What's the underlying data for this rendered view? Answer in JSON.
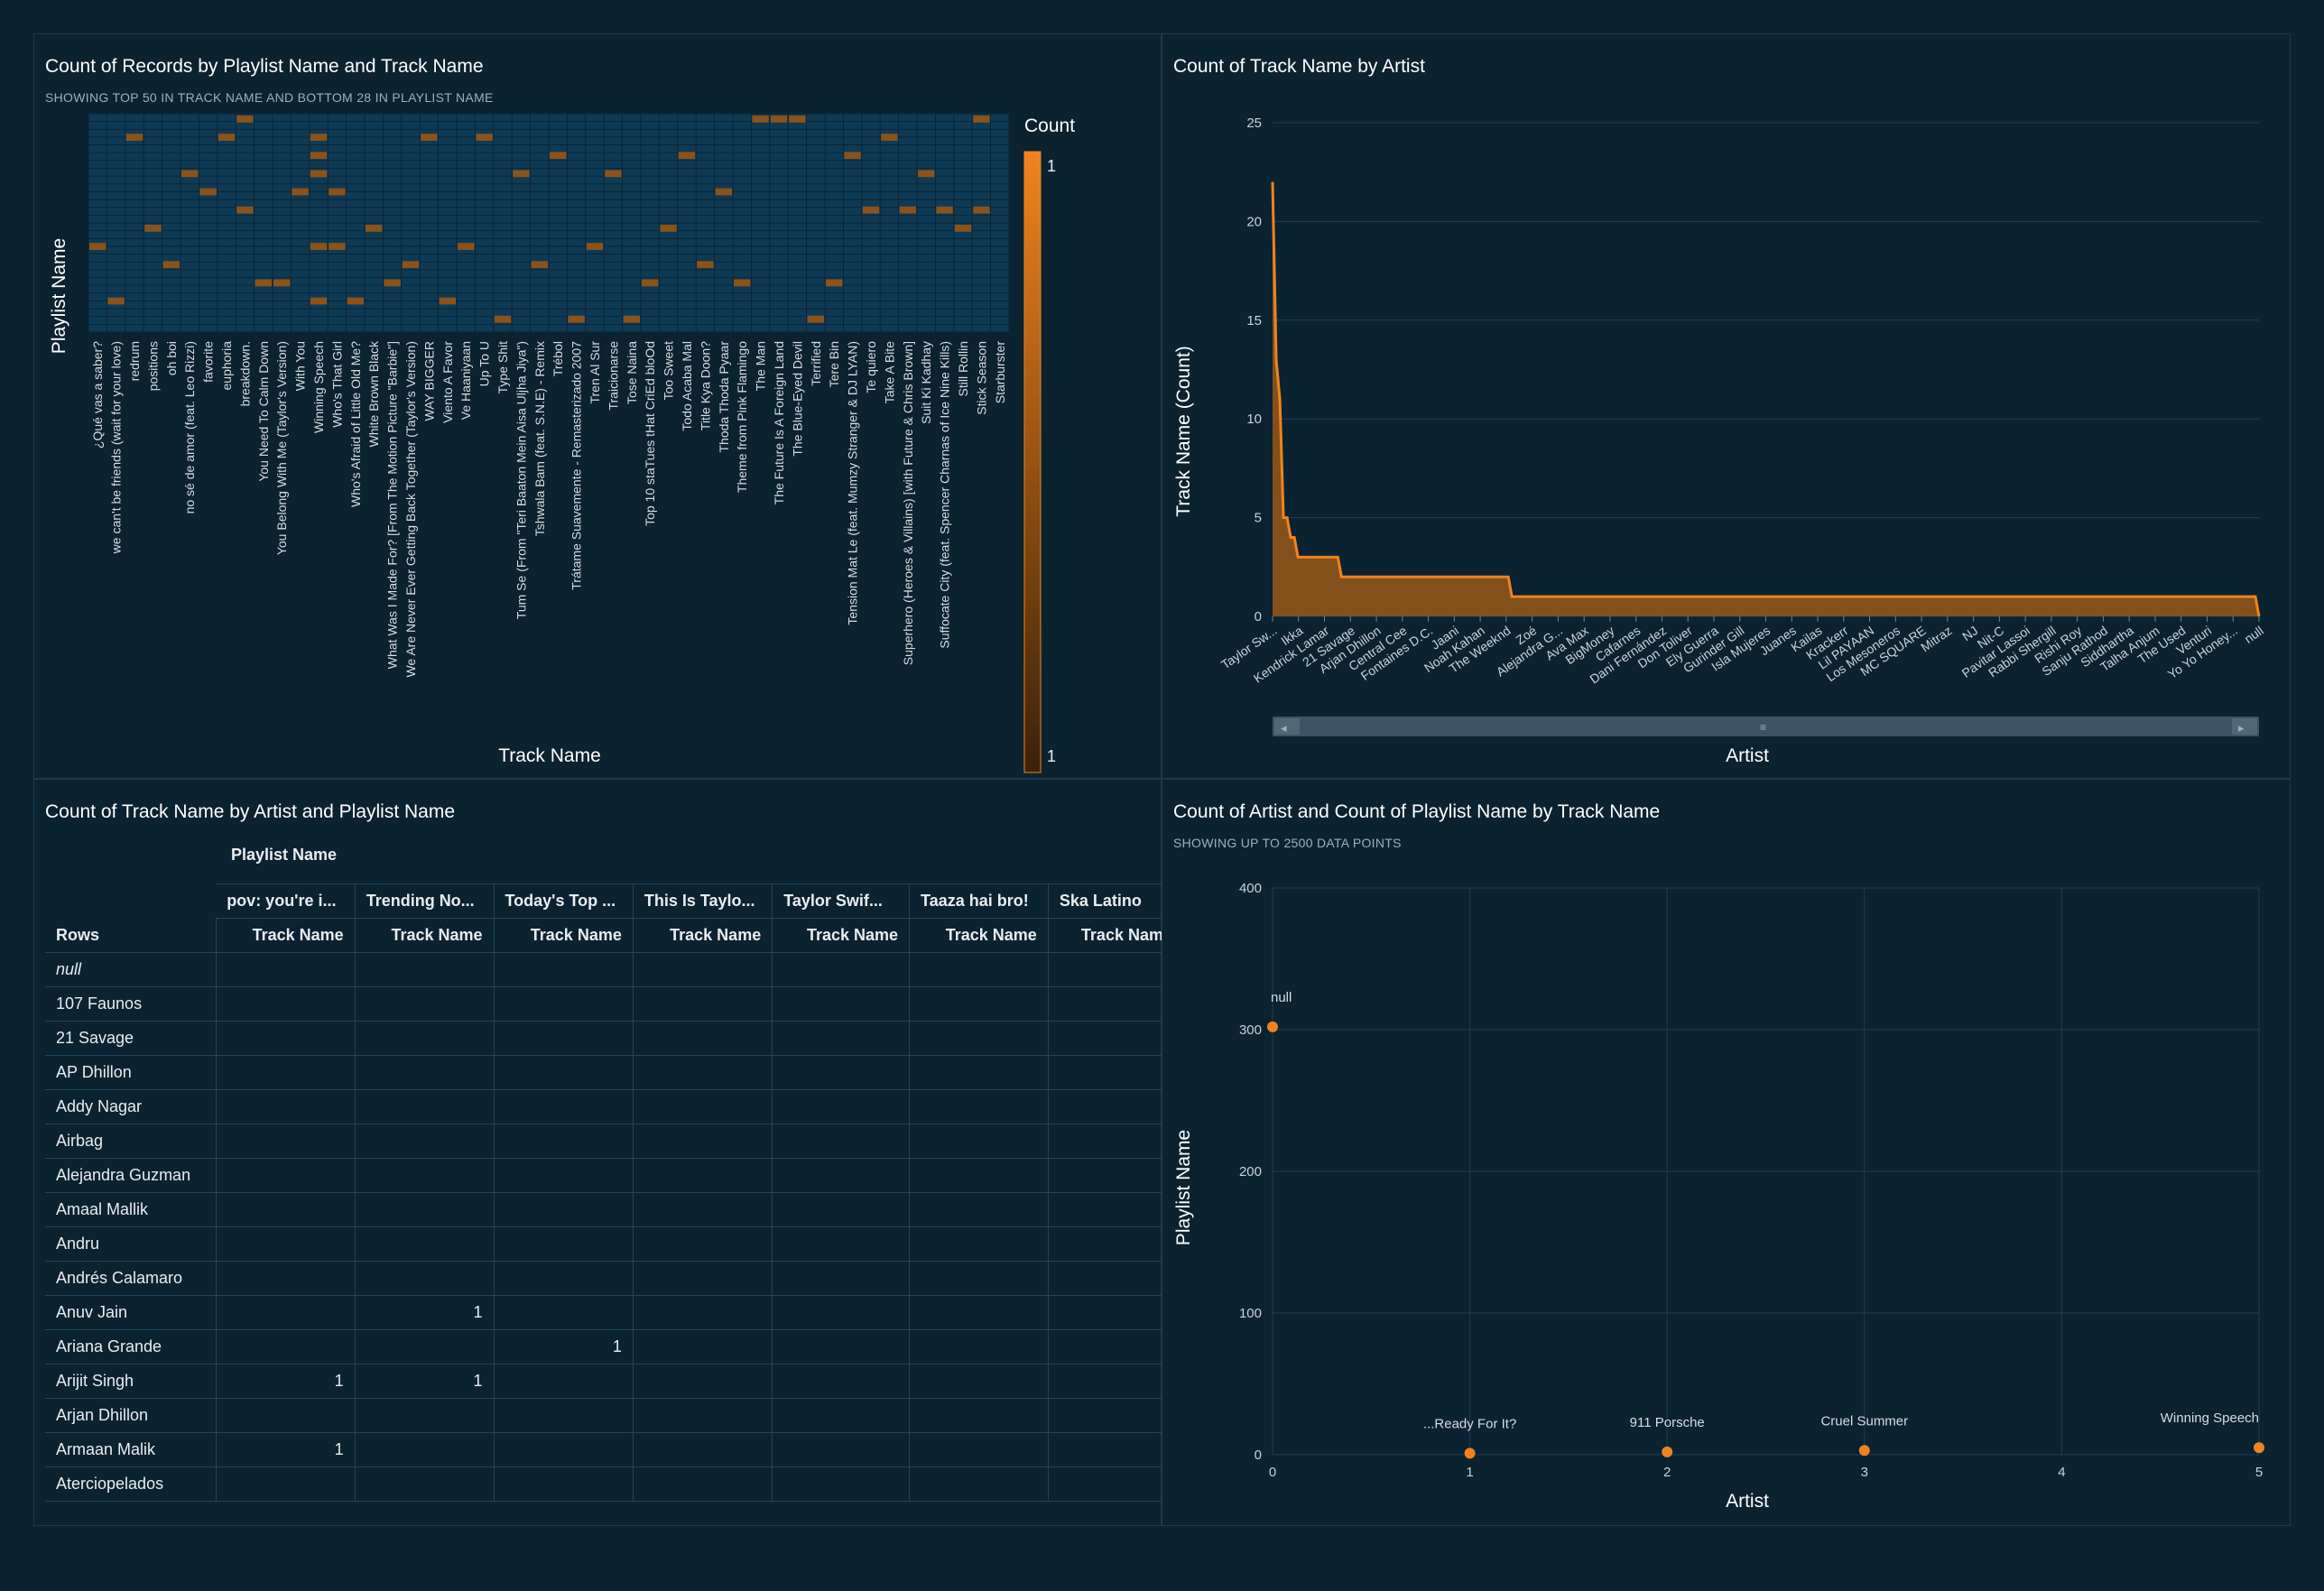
{
  "panels": {
    "heatmap": {
      "title": "Count of Records by Playlist Name and Track Name",
      "subtitle": "SHOWING TOP 50 IN TRACK NAME AND BOTTOM 28 IN PLAYLIST NAME",
      "x_label": "Track Name",
      "y_label": "Playlist Name",
      "legend_title": "Count",
      "legend_max": "1",
      "legend_min": "1"
    },
    "area": {
      "title": "Count of Track Name by Artist",
      "x_label": "Artist",
      "y_label": "Track Name (Count)"
    },
    "pivot": {
      "title": "Count of Track Name by Artist and Playlist Name",
      "col_group_label": "Playlist Name",
      "rows_label": "Rows",
      "subheader": "Track Name",
      "columns": [
        "pov: you're i...",
        "Trending No...",
        "Today's Top ...",
        "This Is Taylo...",
        "Taylor Swif...",
        "Taaza hai bro!",
        "Ska Latino"
      ],
      "rows": [
        {
          "label": "null",
          "italic": true,
          "values": [
            "",
            "",
            "",
            "",
            "",
            "",
            ""
          ]
        },
        {
          "label": "107 Faunos",
          "values": [
            "",
            "",
            "",
            "",
            "",
            "",
            ""
          ]
        },
        {
          "label": "21 Savage",
          "values": [
            "",
            "",
            "",
            "",
            "",
            "",
            ""
          ]
        },
        {
          "label": "AP Dhillon",
          "values": [
            "",
            "",
            "",
            "",
            "",
            "",
            ""
          ]
        },
        {
          "label": "Addy Nagar",
          "values": [
            "",
            "",
            "",
            "",
            "",
            "",
            ""
          ]
        },
        {
          "label": "Airbag",
          "values": [
            "",
            "",
            "",
            "",
            "",
            "",
            ""
          ]
        },
        {
          "label": "Alejandra Guzman",
          "values": [
            "",
            "",
            "",
            "",
            "",
            "",
            ""
          ]
        },
        {
          "label": "Amaal Mallik",
          "values": [
            "",
            "",
            "",
            "",
            "",
            "",
            ""
          ]
        },
        {
          "label": "Andru",
          "values": [
            "",
            "",
            "",
            "",
            "",
            "",
            ""
          ]
        },
        {
          "label": "Andrés Calamaro",
          "values": [
            "",
            "",
            "",
            "",
            "",
            "",
            ""
          ]
        },
        {
          "label": "Anuv Jain",
          "values": [
            "",
            "1",
            "",
            "",
            "",
            "",
            ""
          ]
        },
        {
          "label": "Ariana Grande",
          "values": [
            "",
            "",
            "1",
            "",
            "",
            "",
            ""
          ]
        },
        {
          "label": "Arijit Singh",
          "values": [
            "1",
            "1",
            "",
            "",
            "",
            "",
            ""
          ]
        },
        {
          "label": "Arjan Dhillon",
          "values": [
            "",
            "",
            "",
            "",
            "",
            "",
            ""
          ]
        },
        {
          "label": "Armaan Malik",
          "values": [
            "1",
            "",
            "",
            "",
            "",
            "",
            ""
          ]
        },
        {
          "label": "Aterciopelados",
          "values": [
            "",
            "",
            "",
            "",
            "",
            "",
            ""
          ]
        }
      ]
    },
    "scatter": {
      "title": "Count of Artist and Count of Playlist Name by Track Name",
      "subtitle": "SHOWING UP TO 2500 DATA POINTS",
      "x_label": "Artist",
      "y_label": "Playlist Name"
    }
  },
  "colors": {
    "background": "#0b2231",
    "heat_cell": "#0e3a54",
    "accent": "#f0831e",
    "area_fill": "#8a531b",
    "grid": "#1f3f52"
  },
  "chart_data": [
    {
      "type": "heatmap",
      "title": "Count of Records by Playlist Name and Track Name",
      "xlabel": "Track Name",
      "ylabel": "Playlist Name",
      "legend": "Count",
      "rows_count": 28,
      "categories": [
        "¿Qué vas a saber?",
        "we can't be friends (wait for your love)",
        "redrum",
        "positions",
        "oh boi",
        "no sé de amor (feat. Leo Rizzi)",
        "favorite",
        "euphoria",
        "breakdown.",
        "You Need To Calm Down",
        "You Belong With Me (Taylor's Version)",
        "With You",
        "Winning Speech",
        "Who's That Girl",
        "Who's Afraid of Little Old Me?",
        "White Brown Black",
        "What Was I Made For? [From The Motion Picture \"Barbie\"]",
        "We Are Never Ever Getting Back Together (Taylor's Version)",
        "WAY BIGGER",
        "Viento A Favor",
        "Ve Haaniyaan",
        "Up To U",
        "Type Shit",
        "Tum Se (From \"Teri Baaton Mein Aisa Uljha Jiya\")",
        "Tshwala Bam (feat. S.N.E) - Remix",
        "Trébol",
        "Trátame Suavemente - Remasterizado 2007",
        "Tren Al Sur",
        "Traicionarse",
        "Tose Naina",
        "Top 10 staTues tHat CriEd bloOd",
        "Too Sweet",
        "Todo Acaba Mal",
        "Title Kya Doon?",
        "Thoda Thoda Pyaar",
        "Theme from Pink Flamingo",
        "The Man",
        "The Future Is A Foreign Land",
        "The Blue-Eyed Devil",
        "Terrified",
        "Tere Bin",
        "Tension Mat Le (feat. Mumzy Stranger & DJ LYAN)",
        "Te quiero",
        "Take A Bite",
        "Superhero (Heroes & Villains) [with Future & Chris Brown]",
        "Suit Ki Kadhay",
        "Suffocate City (feat. Spencer Charnas of Ice Nine Kills)",
        "Still Rollin",
        "Stick Season",
        "Starburster"
      ],
      "cells": [
        [
          0,
          7
        ],
        [
          1,
          10
        ],
        [
          2,
          1
        ],
        [
          3,
          6
        ],
        [
          4,
          8
        ],
        [
          5,
          3
        ],
        [
          6,
          4
        ],
        [
          7,
          1
        ],
        [
          8,
          0
        ],
        [
          8,
          5
        ],
        [
          9,
          9
        ],
        [
          10,
          9
        ],
        [
          11,
          4
        ],
        [
          12,
          2
        ],
        [
          12,
          3
        ],
        [
          12,
          1
        ],
        [
          12,
          7
        ],
        [
          12,
          10
        ],
        [
          12,
          3
        ],
        [
          13,
          4
        ],
        [
          13,
          7
        ],
        [
          14,
          10
        ],
        [
          15,
          6
        ],
        [
          16,
          9
        ],
        [
          17,
          8
        ],
        [
          18,
          1
        ],
        [
          19,
          10
        ],
        [
          20,
          7
        ],
        [
          21,
          1
        ],
        [
          22,
          11
        ],
        [
          23,
          3
        ],
        [
          24,
          8
        ],
        [
          25,
          2
        ],
        [
          26,
          11
        ],
        [
          27,
          7
        ],
        [
          28,
          3
        ],
        [
          29,
          11
        ],
        [
          30,
          9
        ],
        [
          31,
          6
        ],
        [
          32,
          2
        ],
        [
          33,
          8
        ],
        [
          34,
          4
        ],
        [
          35,
          9
        ],
        [
          36,
          0
        ],
        [
          37,
          0
        ],
        [
          38,
          0
        ],
        [
          39,
          11
        ],
        [
          40,
          9
        ],
        [
          41,
          2
        ],
        [
          42,
          5
        ],
        [
          43,
          1
        ],
        [
          44,
          5
        ],
        [
          45,
          3
        ],
        [
          46,
          5
        ],
        [
          47,
          6
        ],
        [
          48,
          0
        ],
        [
          48,
          5
        ]
      ]
    },
    {
      "type": "area",
      "title": "Count of Track Name by Artist",
      "xlabel": "Artist",
      "ylabel": "Track Name (Count)",
      "ylim": [
        0,
        25
      ],
      "yticks": [
        0,
        5,
        10,
        15,
        20,
        25
      ],
      "tick_labels": [
        "Taylor Sw...",
        "Ikka",
        "Kendrick Lamar",
        "21 Savage",
        "Arjan Dhillon",
        "Central Cee",
        "Fontaines D.C.",
        "Jaani",
        "Noah Kahan",
        "The Weeknd",
        "Zoé",
        "Alejandra G...",
        "Ava Max",
        "BigMoney",
        "Cafarnes",
        "Dani Fernández",
        "Don Toliver",
        "Ely Guerra",
        "Gurinder Gill",
        "Isla Mujeres",
        "Juanes",
        "Kailas",
        "Krackerr",
        "Lil PAYAAN",
        "Los Mesoneros",
        "MC SQUARE",
        "Mitraz",
        "NJ",
        "Nit-C",
        "Pavitar Lassoi",
        "Rabbi Shergill",
        "Rishi Roy",
        "Sanju Rathod",
        "Siddhartha",
        "Talha Anjum",
        "The Used",
        "Venturi",
        "Yo Yo Honey...",
        "null"
      ],
      "values": [
        22,
        13,
        11,
        5,
        5,
        4,
        4,
        3,
        3,
        3,
        3,
        3,
        3,
        3,
        3,
        3,
        3,
        3,
        3,
        2,
        2,
        2,
        2,
        2,
        2,
        2,
        2,
        2,
        2,
        2,
        2,
        2,
        2,
        2,
        2,
        2,
        2,
        2,
        2,
        2,
        2,
        2,
        2,
        2,
        2,
        2,
        2,
        2,
        2,
        2,
        2,
        2,
        2,
        2,
        2,
        2,
        2,
        2,
        2,
        2,
        2,
        2,
        2,
        2,
        2,
        2,
        1,
        1,
        1,
        1,
        1,
        1,
        1,
        1,
        1,
        1,
        1,
        1,
        1,
        1,
        1,
        1,
        1,
        1,
        1,
        1,
        1,
        1,
        1,
        1,
        1,
        1,
        1,
        1,
        1,
        1,
        1,
        1,
        1,
        1,
        1,
        1,
        1,
        1,
        1,
        1,
        1,
        1,
        1,
        1,
        1,
        1,
        1,
        1,
        1,
        1,
        1,
        1,
        1,
        1,
        1,
        1,
        1,
        1,
        1,
        1,
        1,
        1,
        1,
        1,
        1,
        1,
        1,
        1,
        1,
        1,
        1,
        1,
        1,
        1,
        1,
        1,
        1,
        1,
        1,
        1,
        1,
        1,
        1,
        1,
        1,
        1,
        1,
        1,
        1,
        1,
        1,
        1,
        1,
        1,
        1,
        1,
        1,
        1,
        1,
        1,
        1,
        1,
        1,
        1,
        1,
        1,
        1,
        1,
        1,
        1,
        1,
        1,
        1,
        1,
        1,
        1,
        1,
        1,
        1,
        1,
        1,
        1,
        1,
        1,
        1,
        1,
        1,
        1,
        1,
        1,
        1,
        1,
        1,
        1,
        1,
        1,
        1,
        1,
        1,
        1,
        1,
        1,
        1,
        1,
        1,
        1,
        1,
        1,
        1,
        1,
        1,
        1,
        1,
        1,
        1,
        1,
        1,
        1,
        1,
        1,
        1,
        1,
        1,
        1,
        1,
        1,
        1,
        1,
        1,
        1,
        1,
        1,
        1,
        1,
        1,
        1,
        1,
        1,
        1,
        1,
        1,
        1,
        1,
        1,
        1,
        1,
        1,
        1,
        1,
        1,
        1,
        1,
        1,
        1,
        1,
        1,
        1,
        1,
        1,
        1,
        1,
        1,
        1,
        1,
        1,
        1,
        0
      ]
    },
    {
      "type": "scatter",
      "title": "Count of Artist and Count of Playlist Name by Track Name",
      "xlabel": "Artist",
      "ylabel": "Playlist Name",
      "xlim": [
        0,
        5
      ],
      "ylim": [
        0,
        400
      ],
      "xticks": [
        0,
        1,
        2,
        3,
        4,
        5
      ],
      "yticks": [
        0,
        100,
        200,
        300,
        400
      ],
      "points": [
        {
          "x": 0,
          "y": 302,
          "label": "null"
        },
        {
          "x": 1,
          "y": 1,
          "label": "...Ready For It?"
        },
        {
          "x": 2,
          "y": 2,
          "label": "911 Porsche"
        },
        {
          "x": 3,
          "y": 3,
          "label": "Cruel Summer"
        },
        {
          "x": 5,
          "y": 5,
          "label": "Winning Speech"
        }
      ]
    }
  ]
}
